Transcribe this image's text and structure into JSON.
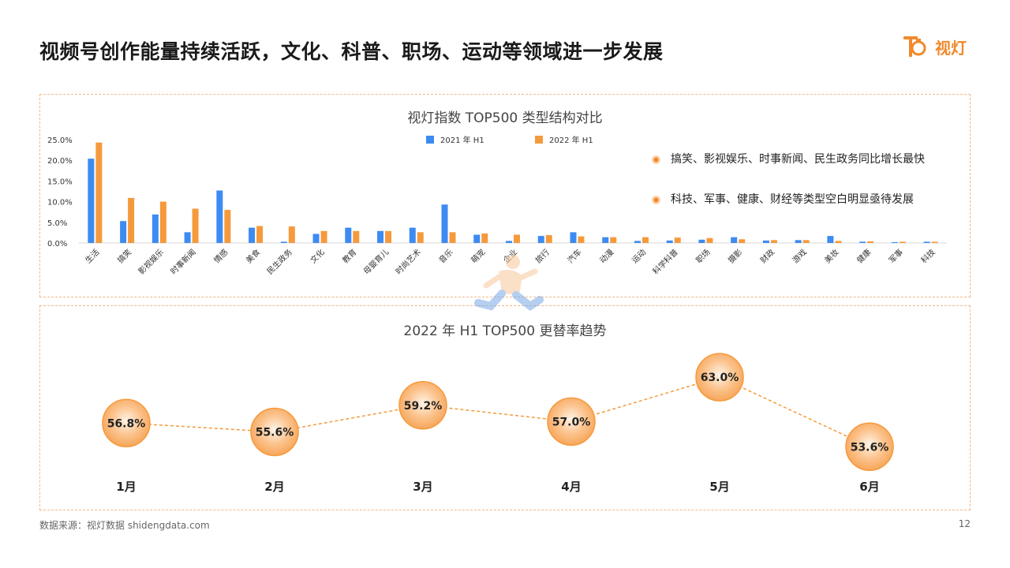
{
  "page": {
    "title": "视频号创作能量持续活跃，文化、科普、职场、运动等领域进一步发展",
    "logo_text": "视灯",
    "source": "数据来源：视灯数据 shidengdata.com",
    "page_number": "12"
  },
  "colors": {
    "accent": "#f08a2c",
    "series_2021": "#3d8bf2",
    "series_2022": "#f59a3c",
    "bubble_fill": "#f7a65a",
    "dashed_border": "#f2b98a"
  },
  "notes": [
    "搞笑、影视娱乐、时事新闻、民生政务同比增长最快",
    "科技、军事、健康、财经等类型空白明显亟待发展"
  ],
  "chart_data": [
    {
      "type": "bar",
      "title": "视灯指数 TOP500 类型结构对比",
      "categories": [
        "生活",
        "搞笑",
        "影视娱乐",
        "时事新闻",
        "情感",
        "美食",
        "民生政务",
        "文化",
        "教育",
        "母婴育儿",
        "时尚艺术",
        "音乐",
        "萌宠",
        "企业",
        "旅行",
        "汽车",
        "动漫",
        "运动",
        "科学科普",
        "职场",
        "摄影",
        "财政",
        "游戏",
        "美妆",
        "健康",
        "军事",
        "科技"
      ],
      "series": [
        {
          "name": "2021 年 H1",
          "values": [
            20.4,
            5.3,
            6.9,
            2.6,
            12.7,
            3.7,
            0.3,
            2.2,
            3.7,
            2.9,
            3.7,
            9.3,
            2.0,
            0.5,
            1.7,
            2.6,
            1.4,
            0.5,
            0.6,
            0.8,
            1.4,
            0.6,
            0.7,
            1.7,
            0.3,
            0.2,
            0.3
          ]
        },
        {
          "name": "2022 年 H1",
          "values": [
            24.3,
            10.9,
            10.0,
            8.3,
            8.0,
            4.1,
            4.0,
            2.9,
            2.9,
            2.9,
            2.6,
            2.6,
            2.3,
            2.0,
            1.9,
            1.6,
            1.4,
            1.4,
            1.3,
            1.2,
            0.9,
            0.7,
            0.7,
            0.5,
            0.4,
            0.3,
            0.3
          ]
        }
      ],
      "yticks": [
        "25.0%",
        "20.0%",
        "15.0%",
        "10.0%",
        "5.0%",
        "0.0%"
      ],
      "ylim": [
        0,
        25
      ]
    },
    {
      "type": "line",
      "title": "2022 年 H1 TOP500 更替率趋势",
      "categories": [
        "1月",
        "2月",
        "3月",
        "4月",
        "5月",
        "6月"
      ],
      "values": [
        56.8,
        55.6,
        59.2,
        57.0,
        63.0,
        53.6
      ],
      "labels": [
        "56.8%",
        "55.6%",
        "59.2%",
        "57.0%",
        "63.0%",
        "53.6%"
      ]
    }
  ]
}
